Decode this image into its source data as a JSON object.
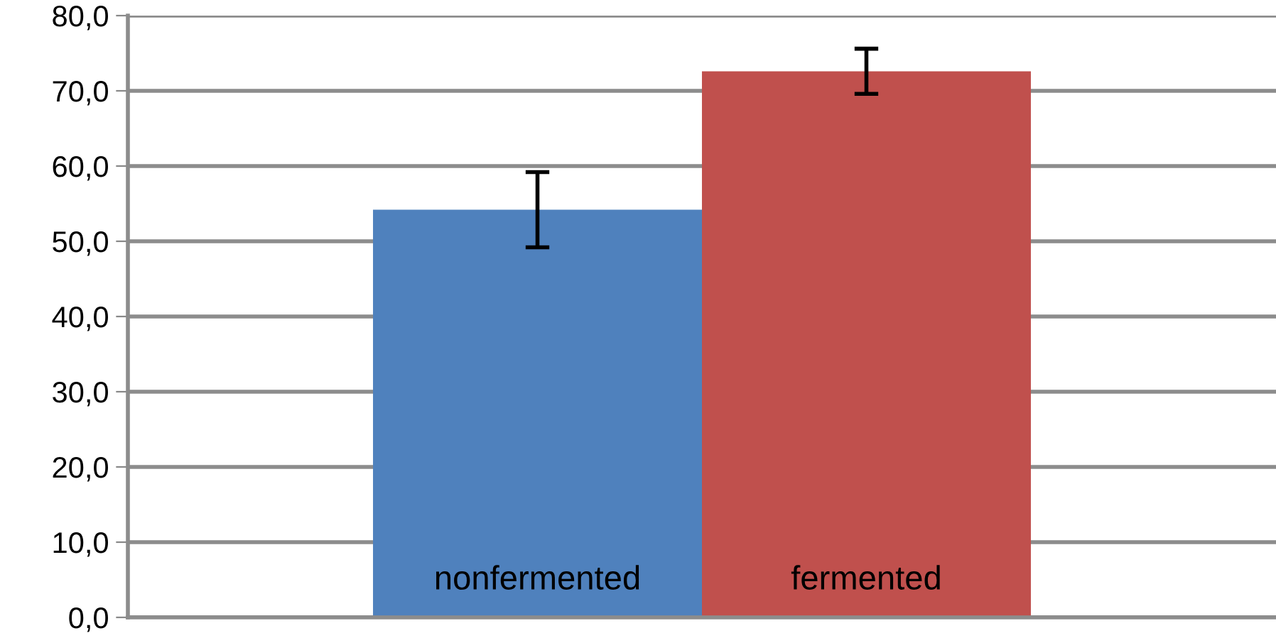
{
  "chart_data": {
    "type": "bar",
    "categories": [
      null
    ],
    "series": [
      {
        "name": "nonfermented",
        "color": "#4f81bd",
        "values": [
          54.2
        ],
        "errors": [
          5.0
        ]
      },
      {
        "name": "fermented",
        "color": "#c0504d",
        "values": [
          72.6
        ],
        "errors": [
          3.0
        ]
      }
    ],
    "ylim": [
      0,
      80
    ],
    "yticks": [
      {
        "value": 0,
        "label": "0,0"
      },
      {
        "value": 10,
        "label": "10,0"
      },
      {
        "value": 20,
        "label": "20,0"
      },
      {
        "value": 30,
        "label": "30,0"
      },
      {
        "value": 40,
        "label": "40,0"
      },
      {
        "value": 50,
        "label": "50,0"
      },
      {
        "value": 60,
        "label": "60,0"
      },
      {
        "value": 70,
        "label": "70,0"
      },
      {
        "value": 80,
        "label": "80,0"
      }
    ],
    "grid": "y",
    "legend": false
  }
}
